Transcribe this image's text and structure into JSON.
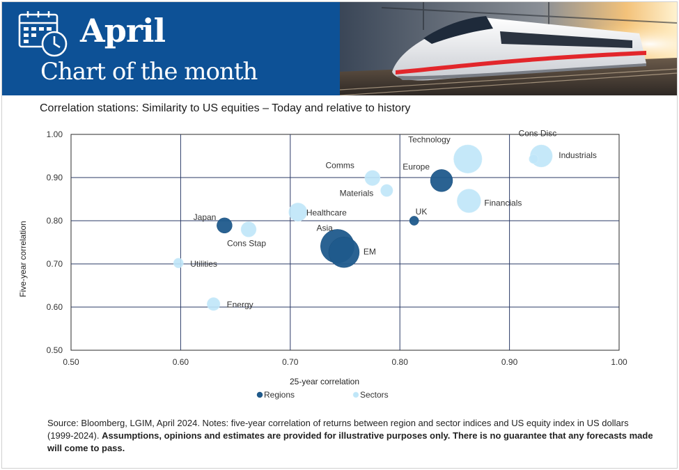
{
  "header": {
    "title": "April",
    "subtitle": "Chart of the month",
    "icon": "calendar-clock-icon",
    "image": "high-speed-train-photo",
    "bg_color": "#0d5196"
  },
  "chart_data": {
    "type": "scatter",
    "title": "Correlation stations: Similarity to US equities – Today and relative to history",
    "xlabel": "25-year correlation",
    "ylabel": "Five-year correlation",
    "xlim": [
      0.5,
      1.0
    ],
    "ylim": [
      0.5,
      1.0
    ],
    "x_ticks": [
      "0.50",
      "0.60",
      "0.70",
      "0.80",
      "0.90",
      "1.00"
    ],
    "y_ticks": [
      "1.00",
      "0.90",
      "0.80",
      "0.70",
      "0.60",
      "0.50"
    ],
    "grid": true,
    "legend_position": "bottom",
    "series": [
      {
        "name": "Regions",
        "color": "#1f5a8c",
        "points": [
          {
            "label": "Japan",
            "x": 0.64,
            "y": 0.789,
            "size": 1.0
          },
          {
            "label": "Asia",
            "x": 0.743,
            "y": 0.741,
            "size": 2.2
          },
          {
            "label": "EM",
            "x": 0.749,
            "y": 0.727,
            "size": 2.0
          },
          {
            "label": "UK",
            "x": 0.813,
            "y": 0.8,
            "size": 0.6
          },
          {
            "label": "Europe",
            "x": 0.838,
            "y": 0.893,
            "size": 1.45
          }
        ]
      },
      {
        "name": "Sectors",
        "color": "#bfe6f8",
        "points": [
          {
            "label": "Utilities",
            "x": 0.598,
            "y": 0.702,
            "size": 0.65
          },
          {
            "label": "Energy",
            "x": 0.63,
            "y": 0.607,
            "size": 0.85
          },
          {
            "label": "Cons Stap",
            "x": 0.662,
            "y": 0.78,
            "size": 1.0
          },
          {
            "label": "Healthcare",
            "x": 0.707,
            "y": 0.82,
            "size": 1.2
          },
          {
            "label": "Comms",
            "x": 0.775,
            "y": 0.899,
            "size": 1.0
          },
          {
            "label": "Materials",
            "x": 0.788,
            "y": 0.87,
            "size": 0.8
          },
          {
            "label": "Technology",
            "x": 0.862,
            "y": 0.943,
            "size": 1.85
          },
          {
            "label": "Financials",
            "x": 0.863,
            "y": 0.846,
            "size": 1.55
          },
          {
            "label": "Cons Disc",
            "x": 0.922,
            "y": 0.943,
            "size": 0.6
          },
          {
            "label": "Industrials",
            "x": 0.929,
            "y": 0.95,
            "size": 1.45
          }
        ]
      }
    ]
  },
  "footnote": {
    "plain": "Source: Bloomberg, LGIM, April 2024. Notes: five-year correlation of returns between region and sector indices and US equity index in US dollars (1999-2024). ",
    "bold": "Assumptions, opinions and estimates are provided for illustrative purposes only. There is no guarantee that any forecasts made will come to pass."
  }
}
